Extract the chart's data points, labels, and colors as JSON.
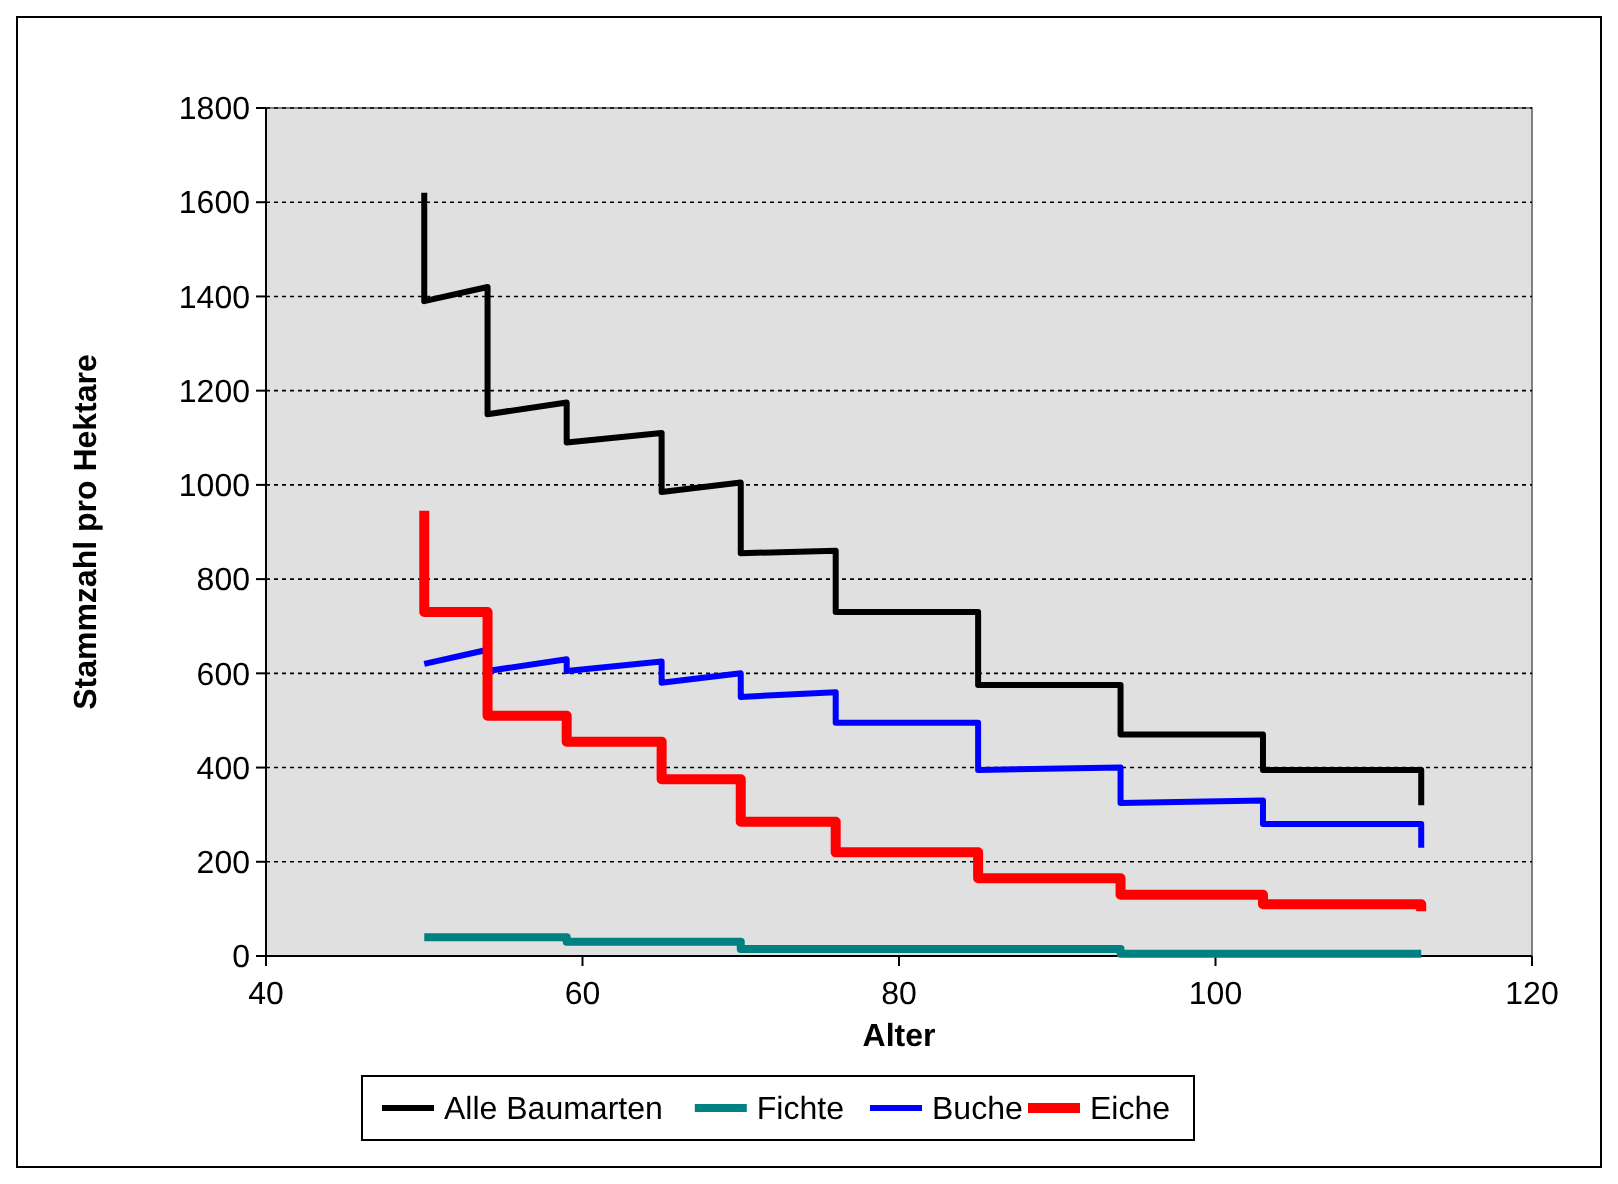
{
  "chart_data": {
    "type": "line",
    "xlabel": "Alter",
    "ylabel": "Stammzahl pro Hektare",
    "xlim": [
      40,
      120
    ],
    "xticks": [
      40,
      60,
      80,
      100,
      120
    ],
    "ylim": [
      0,
      1800
    ],
    "yticks": [
      0,
      200,
      400,
      600,
      800,
      1000,
      1200,
      1400,
      1600,
      1800
    ],
    "grid": "y",
    "legend": "bottom",
    "marker": "none",
    "line_style": "solid",
    "series": [
      {
        "name": "Alle Baumarten",
        "color": "#000000",
        "x": [
          50,
          50,
          54,
          54,
          59,
          59,
          65,
          65,
          70,
          70,
          76,
          76,
          85,
          85,
          94,
          94,
          103,
          103,
          113,
          113
        ],
        "values": [
          1620,
          1390,
          1420,
          1150,
          1175,
          1090,
          1110,
          985,
          1005,
          855,
          860,
          730,
          730,
          575,
          575,
          470,
          470,
          395,
          395,
          320
        ]
      },
      {
        "name": "Fichte",
        "color": "#008080",
        "x": [
          50,
          59,
          59,
          70,
          70,
          94,
          94,
          113
        ],
        "values": [
          40,
          40,
          30,
          30,
          15,
          15,
          5,
          5
        ]
      },
      {
        "name": "Buche",
        "color": "#0000ff",
        "x": [
          50,
          54,
          54,
          59,
          59,
          65,
          65,
          70,
          70,
          76,
          76,
          85,
          85,
          94,
          94,
          103,
          103,
          113,
          113
        ],
        "values": [
          620,
          650,
          605,
          630,
          605,
          625,
          580,
          600,
          550,
          560,
          495,
          495,
          395,
          400,
          325,
          330,
          280,
          280,
          230
        ]
      },
      {
        "name": "Eiche",
        "color": "#ff0000",
        "x": [
          50,
          50,
          54,
          54,
          59,
          59,
          65,
          65,
          70,
          70,
          76,
          76,
          85,
          85,
          94,
          94,
          103,
          103,
          113,
          113
        ],
        "values": [
          945,
          730,
          730,
          510,
          510,
          455,
          455,
          375,
          375,
          285,
          285,
          220,
          220,
          165,
          165,
          130,
          130,
          110,
          110,
          95
        ]
      }
    ]
  }
}
